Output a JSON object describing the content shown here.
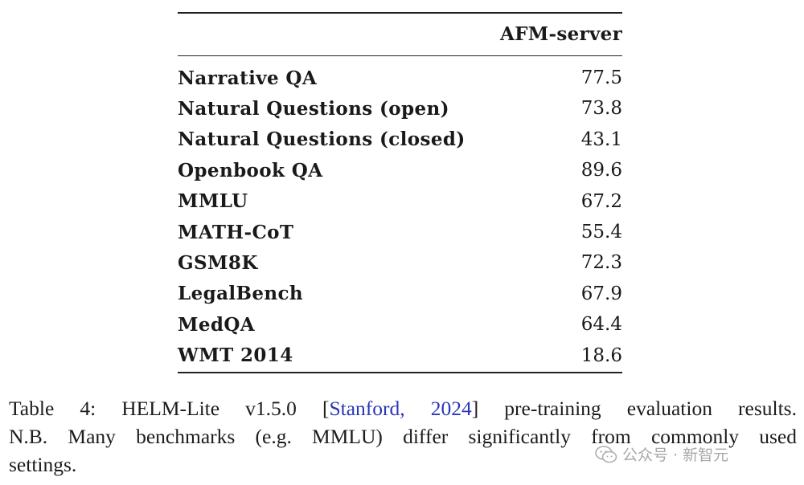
{
  "table": {
    "column_header": "AFM-server",
    "rows": [
      {
        "name": "Narrative QA",
        "value": "77.5"
      },
      {
        "name": "Natural Questions (open)",
        "value": "73.8"
      },
      {
        "name": "Natural Questions (closed)",
        "value": "43.1"
      },
      {
        "name": "Openbook QA",
        "value": "89.6"
      },
      {
        "name": "MMLU",
        "value": "67.2"
      },
      {
        "name": "MATH-CoT",
        "value": "55.4"
      },
      {
        "name": "GSM8K",
        "value": "72.3"
      },
      {
        "name": "LegalBench",
        "value": "67.9"
      },
      {
        "name": "MedQA",
        "value": "64.4"
      },
      {
        "name": "WMT 2014",
        "value": "18.6"
      }
    ]
  },
  "caption": {
    "prefix": "Table 4: HELM-Lite v1.5.0 [",
    "citation": "Stanford, 2024",
    "suffix": "] pre-training evaluation results.",
    "line2": "N.B. Many benchmarks (e.g. MMLU) differ significantly from commonly used",
    "line3": "settings."
  },
  "watermark": {
    "icon": "wechat-icon",
    "text": "公众号 · 新智元"
  }
}
